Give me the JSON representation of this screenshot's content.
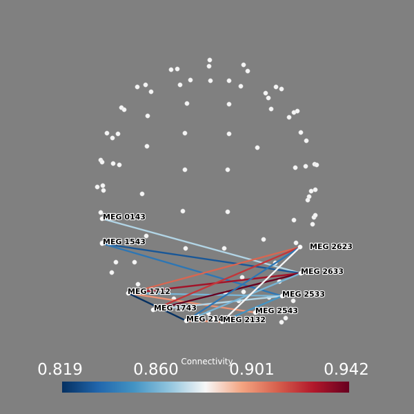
{
  "scalar_bar": {
    "title": "Connectivity",
    "ticks": [
      "0.819",
      "0.860",
      "0.901",
      "0.942"
    ],
    "colormap": "RdBu_r",
    "colors": [
      "#053061",
      "#2166ac",
      "#4393c3",
      "#92c5de",
      "#f7f7f7",
      "#f4a582",
      "#d6604d",
      "#b2182b",
      "#67001f"
    ]
  },
  "sensor_labels": [
    "MEG 0143",
    "MEG 1543",
    "MEG 1712",
    "MEG 1743",
    "MEG 2142",
    "MEG 2132",
    "MEG 2623",
    "MEG 2633",
    "MEG 2533",
    "MEG 2543"
  ],
  "connections": [
    {
      "from": "MEG 0143",
      "to": "MEG 2633",
      "value": 0.87
    },
    {
      "from": "MEG 1543",
      "to": "MEG 2633",
      "value": 0.83
    },
    {
      "from": "MEG 1543",
      "to": "MEG 2533",
      "value": 0.84
    },
    {
      "from": "MEG 1712",
      "to": "MEG 2623",
      "value": 0.91
    },
    {
      "from": "MEG 1712",
      "to": "MEG 2633",
      "value": 0.93
    },
    {
      "from": "MEG 1712",
      "to": "MEG 2533",
      "value": 0.86
    },
    {
      "from": "MEG 1712",
      "to": "MEG 2543",
      "value": 0.9
    },
    {
      "from": "MEG 1743",
      "to": "MEG 2623",
      "value": 0.92
    },
    {
      "from": "MEG 1743",
      "to": "MEG 2633",
      "value": 0.942
    },
    {
      "from": "MEG 1743",
      "to": "MEG 2533",
      "value": 0.87
    },
    {
      "from": "MEG 2142",
      "to": "MEG 2633",
      "value": 0.86
    },
    {
      "from": "MEG 2142",
      "to": "MEG 2623",
      "value": 0.84
    },
    {
      "from": "MEG 2132",
      "to": "MEG 2623",
      "value": 0.88
    },
    {
      "from": "MEG 2132",
      "to": "MEG 2533",
      "value": 0.85
    },
    {
      "from": "MEG 1712",
      "to": "MEG 2142",
      "value": 0.819
    },
    {
      "from": "MEG 2142",
      "to": "MEG 2132",
      "value": 0.9
    }
  ]
}
